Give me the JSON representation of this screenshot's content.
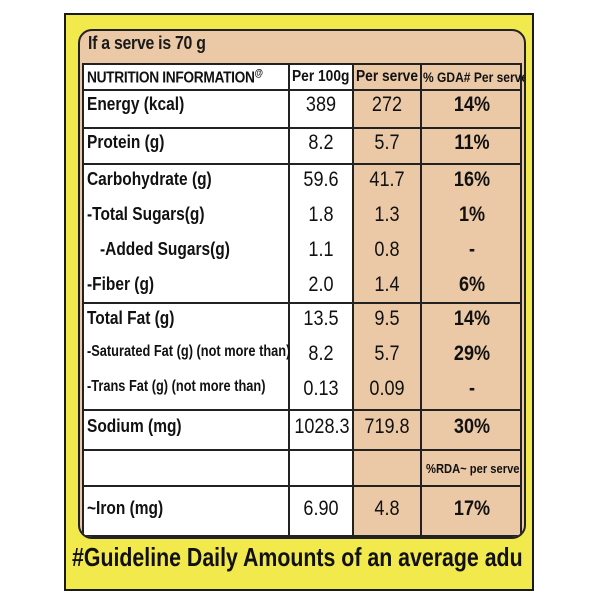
{
  "label": {
    "serve_line": "If a serve is 70 g",
    "headers": {
      "nutrition": "NUTRITION INFORMATION",
      "nutrition_mark": "@",
      "per100": "Per 100g",
      "perserve": "Per serve",
      "gda": "% GDA# Per serve"
    },
    "rows": [
      {
        "name": "Energy (kcal)",
        "per100": "389",
        "perserve": "272",
        "gda": "14%"
      },
      {
        "name": "Protein (g)",
        "per100": "8.2",
        "perserve": "5.7",
        "gda": "11%"
      },
      {
        "name": "Carbohydrate (g)",
        "per100": "59.6",
        "perserve": "41.7",
        "gda": "16%"
      },
      {
        "name": "-Total Sugars(g)",
        "per100": "1.8",
        "perserve": "1.3",
        "gda": "1%"
      },
      {
        "name": "-Added Sugars(g)",
        "per100": "1.1",
        "perserve": "0.8",
        "gda": "-"
      },
      {
        "name": "-Fiber (g)",
        "per100": "2.0",
        "perserve": "1.4",
        "gda": "6%"
      },
      {
        "name": "Total Fat (g)",
        "per100": "13.5",
        "perserve": "9.5",
        "gda": "14%"
      },
      {
        "name": "-Saturated Fat (g) (not more than)",
        "per100": "8.2",
        "perserve": "5.7",
        "gda": "29%"
      },
      {
        "name": "-Trans Fat (g) (not more than)",
        "per100": "0.13",
        "perserve": "0.09",
        "gda": "-"
      },
      {
        "name": "Sodium (mg)",
        "per100": "1028.3",
        "perserve": "719.8",
        "gda": "30%"
      }
    ],
    "rda_header": "%RDA~ per serve",
    "iron": {
      "name": "~Iron (mg)",
      "per100": "6.90",
      "perserve": "4.8",
      "rda": "17%"
    },
    "footer": "#Guideline Daily Amounts of an average adu"
  },
  "colors": {
    "yellow_background": "#f2ea4c",
    "peach_panel": "#ecc9a6",
    "white_column": "#ffffff",
    "ink": "#111111"
  }
}
